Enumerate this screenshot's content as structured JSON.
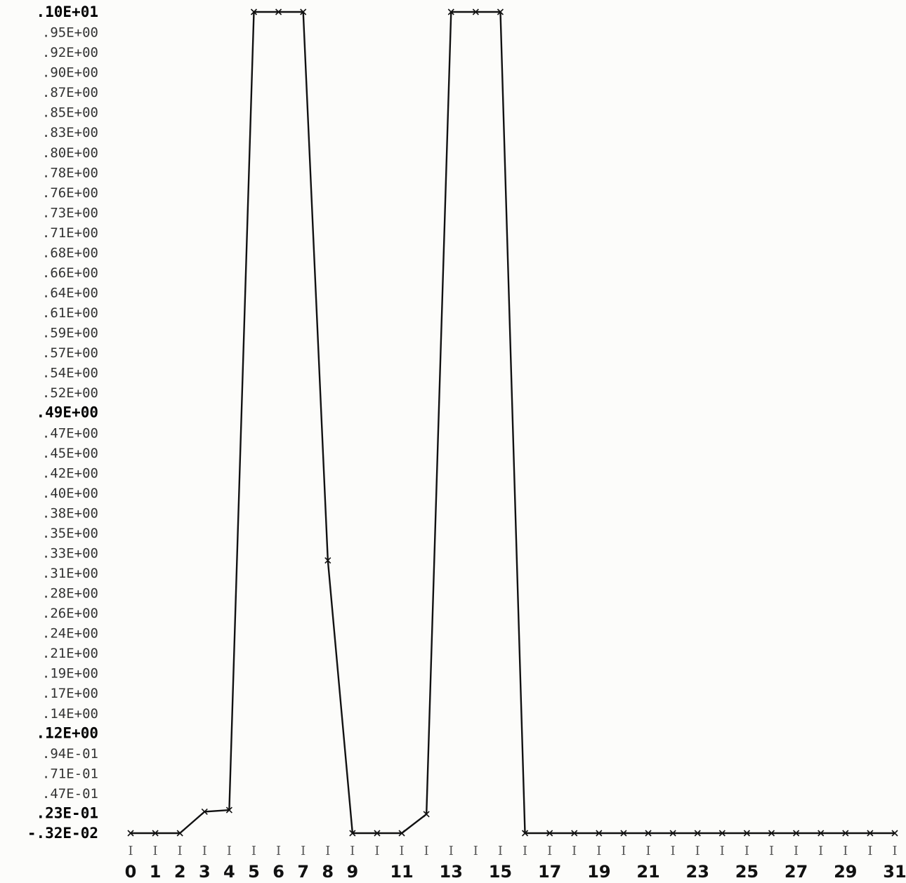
{
  "chart_data": {
    "type": "line",
    "title": "",
    "xlabel": "",
    "ylabel": "",
    "grid": false,
    "y_tick_labels": [
      ".10E+01",
      ".95E+00",
      ".92E+00",
      ".90E+00",
      ".87E+00",
      ".85E+00",
      ".83E+00",
      ".80E+00",
      ".78E+00",
      ".76E+00",
      ".73E+00",
      ".71E+00",
      ".68E+00",
      ".66E+00",
      ".64E+00",
      ".61E+00",
      ".59E+00",
      ".57E+00",
      ".54E+00",
      ".52E+00",
      ".49E+00",
      ".47E+00",
      ".45E+00",
      ".42E+00",
      ".40E+00",
      ".38E+00",
      ".35E+00",
      ".33E+00",
      ".31E+00",
      ".28E+00",
      ".26E+00",
      ".24E+00",
      ".21E+00",
      ".19E+00",
      ".17E+00",
      ".14E+00",
      ".12E+00",
      ".94E-01",
      ".71E-01",
      ".47E-01",
      ".23E-01",
      "-.32E-02"
    ],
    "y_bold_labels": [
      ".10E+01",
      ".49E+00",
      ".12E+00",
      ".23E-01",
      "-.32E-02"
    ],
    "x_tick_labels": [
      "0",
      "1",
      "2",
      "3",
      "4",
      "5",
      "6",
      "7",
      "8",
      "9",
      "11",
      "13",
      "15",
      "17",
      "19",
      "21",
      "23",
      "25",
      "27",
      "29",
      "31"
    ],
    "x_tick_positions": [
      0,
      1,
      2,
      3,
      4,
      5,
      6,
      7,
      8,
      9,
      11,
      13,
      15,
      17,
      19,
      21,
      23,
      25,
      27,
      29,
      31
    ],
    "xlim": [
      0,
      31
    ],
    "ylim": [
      -0.0032,
      1.0
    ],
    "series": [
      {
        "x": [
          0,
          1,
          2,
          3,
          4,
          5,
          6,
          7,
          8,
          9,
          10,
          11,
          12,
          13,
          14,
          15,
          16,
          17,
          18,
          19,
          20,
          21,
          22,
          23,
          24,
          25,
          26,
          27,
          28,
          29,
          30,
          31
        ],
        "y": [
          -0.0032,
          -0.0032,
          -0.0032,
          0.023,
          0.025,
          1.0,
          1.0,
          1.0,
          0.33,
          -0.0032,
          -0.0032,
          -0.0032,
          0.02,
          1.0,
          1.0,
          1.0,
          -0.0032,
          -0.0032,
          -0.0032,
          -0.0032,
          -0.0032,
          -0.0032,
          -0.0032,
          -0.0032,
          -0.0032,
          -0.0032,
          -0.0032,
          -0.0032,
          -0.0032,
          -0.0032,
          -0.0032,
          -0.0032
        ]
      }
    ],
    "marker": "x",
    "line_color": "#111111"
  }
}
